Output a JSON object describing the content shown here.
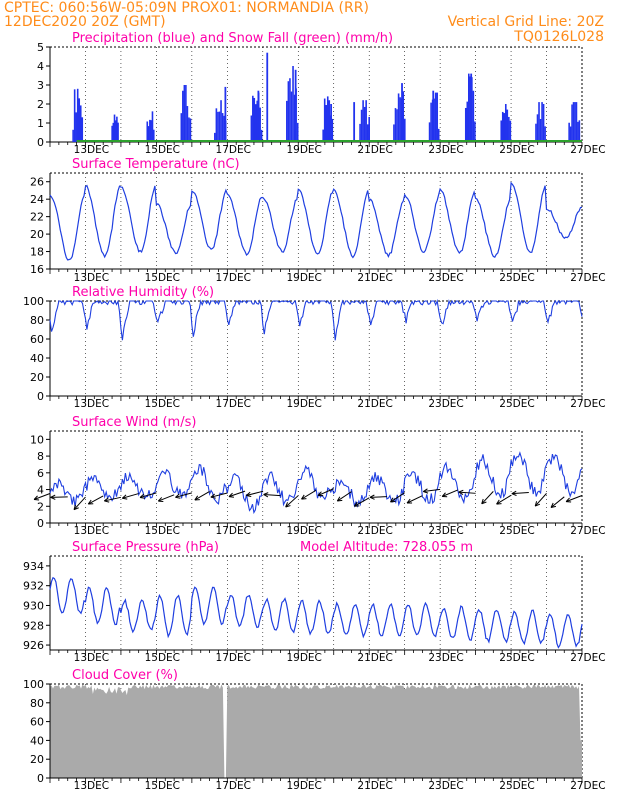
{
  "header": {
    "line1": "CPTEC:   060:56W-05:09N   PROX01: NORMANDIA (RR)",
    "line2_left": "12DEC2020 20Z (GMT)",
    "line2_right": "Vertical Grid Line: 20Z",
    "code": "TQ0126L028",
    "color": "#ff8c1a"
  },
  "colors": {
    "title": "#ff00aa",
    "line": "#1f3fe0",
    "precip": "#2233ee",
    "snow": "#2ca02c",
    "cloud": "#aaaaaa",
    "wind_arrow": "#000000"
  },
  "x_tick_labels": [
    "13DEC",
    "15DEC",
    "17DEC",
    "19DEC",
    "21DEC",
    "23DEC",
    "25DEC",
    "27DEC"
  ],
  "chart_data": [
    {
      "type": "bar",
      "title": "Precipitation (blue) and Snow Fall (green) (mm/h)",
      "xlabel": "",
      "ylabel": "",
      "ylim": [
        0,
        5
      ],
      "yticks": [
        0,
        1,
        2,
        3,
        4,
        5
      ],
      "series": [
        {
          "name": "Precipitation",
          "color": "#2233ee",
          "clusters": [
            [
              0.78,
              0.3,
              2.8
            ],
            [
              1.83,
              0.2,
              1.6
            ],
            [
              2.83,
              0.22,
              1.9
            ],
            [
              3.83,
              0.3,
              3.0
            ],
            [
              4.8,
              0.35,
              2.2
            ],
            [
              5.82,
              0.33,
              2.6
            ],
            [
              6.83,
              0.35,
              4.0
            ],
            [
              7.83,
              0.3,
              2.4
            ],
            [
              8.87,
              0.3,
              2.2
            ],
            [
              9.85,
              0.35,
              3.0
            ],
            [
              10.83,
              0.3,
              2.6
            ],
            [
              11.85,
              0.3,
              3.6
            ],
            [
              12.85,
              0.3,
              2.0
            ],
            [
              13.83,
              0.3,
              2.1
            ],
            [
              14.78,
              0.33,
              2.1
            ]
          ],
          "spikes": [
            [
              4.92,
              2.9
            ],
            [
              5.85,
              2.7
            ],
            [
              6.1,
              4.7
            ],
            [
              6.9,
              3.8
            ],
            [
              7.9,
              2.0
            ],
            [
              8.55,
              2.1
            ],
            [
              9.9,
              3.1
            ],
            [
              10.78,
              2.7
            ],
            [
              11.85,
              3.6
            ]
          ]
        },
        {
          "name": "Snow Fall",
          "color": "#2ca02c",
          "values": [
            0
          ]
        }
      ]
    },
    {
      "type": "line",
      "title": "Surface Temperature (nC)",
      "ylim": [
        16,
        27
      ],
      "yticks": [
        16,
        18,
        20,
        22,
        24,
        26
      ],
      "daily": {
        "min": [
          17.0,
          17.5,
          18.0,
          17.8,
          18.2,
          17.8,
          18.0,
          17.8,
          17.5,
          17.6,
          18.0,
          17.8,
          17.4,
          17.8,
          19.5
        ],
        "max": [
          24.5,
          25.5,
          25.5,
          23.5,
          25.0,
          24.5,
          24.2,
          25.0,
          25.0,
          24.0,
          24.5,
          25.0,
          24.0,
          25.8,
          23.0
        ]
      }
    },
    {
      "type": "line",
      "title": "Relative Humidity (%)",
      "ylim": [
        0,
        100
      ],
      "yticks": [
        0,
        20,
        40,
        60,
        80,
        100
      ],
      "daily_min": [
        68,
        72,
        62,
        75,
        65,
        73,
        66,
        72,
        62,
        73,
        80,
        74,
        78,
        78,
        76
      ]
    },
    {
      "type": "line",
      "title": "Surface Wind (m/s)",
      "ylim": [
        0,
        11
      ],
      "yticks": [
        0,
        2,
        4,
        6,
        8,
        10
      ],
      "daily": {
        "lo": [
          2.5,
          3.0,
          3.2,
          3.5,
          2.8,
          1.8,
          2.5,
          2.8,
          2.5,
          2.5,
          2.8,
          3.0,
          3.5,
          3.5,
          3.8
        ],
        "hi": [
          4.5,
          5.0,
          5.5,
          6.0,
          6.5,
          5.5,
          5.5,
          6.5,
          5.0,
          5.5,
          6.0,
          6.8,
          7.5,
          8.5,
          8.0
        ]
      }
    },
    {
      "type": "line",
      "title": "Surface Pressure (hPa)",
      "annotation": "Model Altitude: 728.055  m",
      "ylim": [
        925.5,
        935
      ],
      "yticks": [
        926,
        928,
        930,
        932,
        934
      ],
      "daily": {
        "base": [
          931.0,
          930.0,
          929.0,
          929.0,
          930.0,
          929.5,
          929.0,
          928.8,
          928.5,
          928.5,
          928.5,
          928.2,
          928.0,
          927.8,
          927.5
        ],
        "amp": [
          1.8,
          1.8,
          1.5,
          2.0,
          1.8,
          1.6,
          1.6,
          1.6,
          1.6,
          1.6,
          1.6,
          1.6,
          1.6,
          1.6,
          1.6
        ]
      }
    },
    {
      "type": "area",
      "title": "Cloud Cover (%)",
      "ylim": [
        0,
        100
      ],
      "yticks": [
        0,
        20,
        40,
        60,
        80,
        100
      ],
      "note": "Near 100% throughout with a gap near 17DEC 20Z"
    }
  ]
}
